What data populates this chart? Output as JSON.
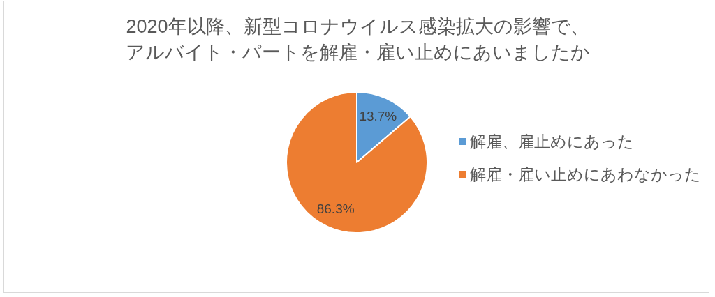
{
  "chart_data": {
    "type": "pie",
    "title": "2020年以降、新型コロナウイルス感染拡大の影響で、アルバイト・パートを解雇・雇い止めにあいましたか",
    "categories": [
      "解雇、雇止めにあった",
      "解雇・雇い止めにあわなかった"
    ],
    "values": [
      13.7,
      86.3
    ],
    "colors": [
      "#5b9bd5",
      "#ed7d31"
    ],
    "value_labels": [
      "13.7%",
      "86.3%"
    ],
    "legend": "right"
  }
}
